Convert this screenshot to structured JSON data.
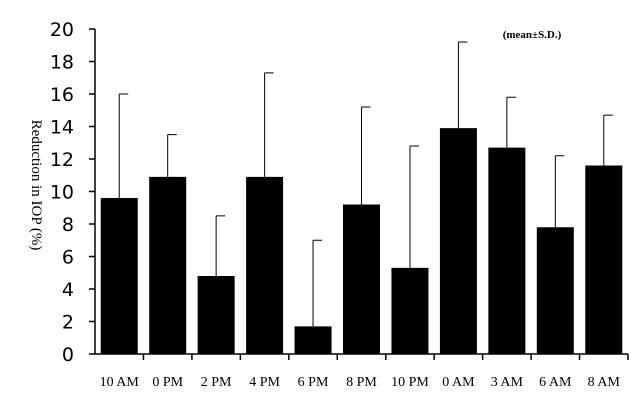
{
  "chart_data": {
    "type": "bar",
    "title": "",
    "xlabel": "",
    "ylabel": "Reduction in IOP (%)",
    "annotation": "(mean±S.D.)",
    "ylim": [
      0,
      20
    ],
    "yticks": [
      "0",
      "2",
      "4",
      "6",
      "8",
      "10",
      "12",
      "14",
      "16",
      "18",
      "20"
    ],
    "categories": [
      "10 AM",
      "0 PM",
      "2 PM",
      "4 PM",
      "6 PM",
      "8 PM",
      "10 PM",
      "0 AM",
      "3 AM",
      "6 AM",
      "8 AM"
    ],
    "values": [
      9.6,
      10.9,
      4.8,
      10.9,
      1.7,
      9.2,
      5.3,
      13.9,
      12.7,
      7.8,
      11.6
    ],
    "sd": [
      6.4,
      2.6,
      3.7,
      6.4,
      5.3,
      6.0,
      7.5,
      5.3,
      3.1,
      4.4,
      3.1
    ],
    "colors": {
      "bar": "#000000",
      "axis": "#000000"
    },
    "grid": false
  }
}
